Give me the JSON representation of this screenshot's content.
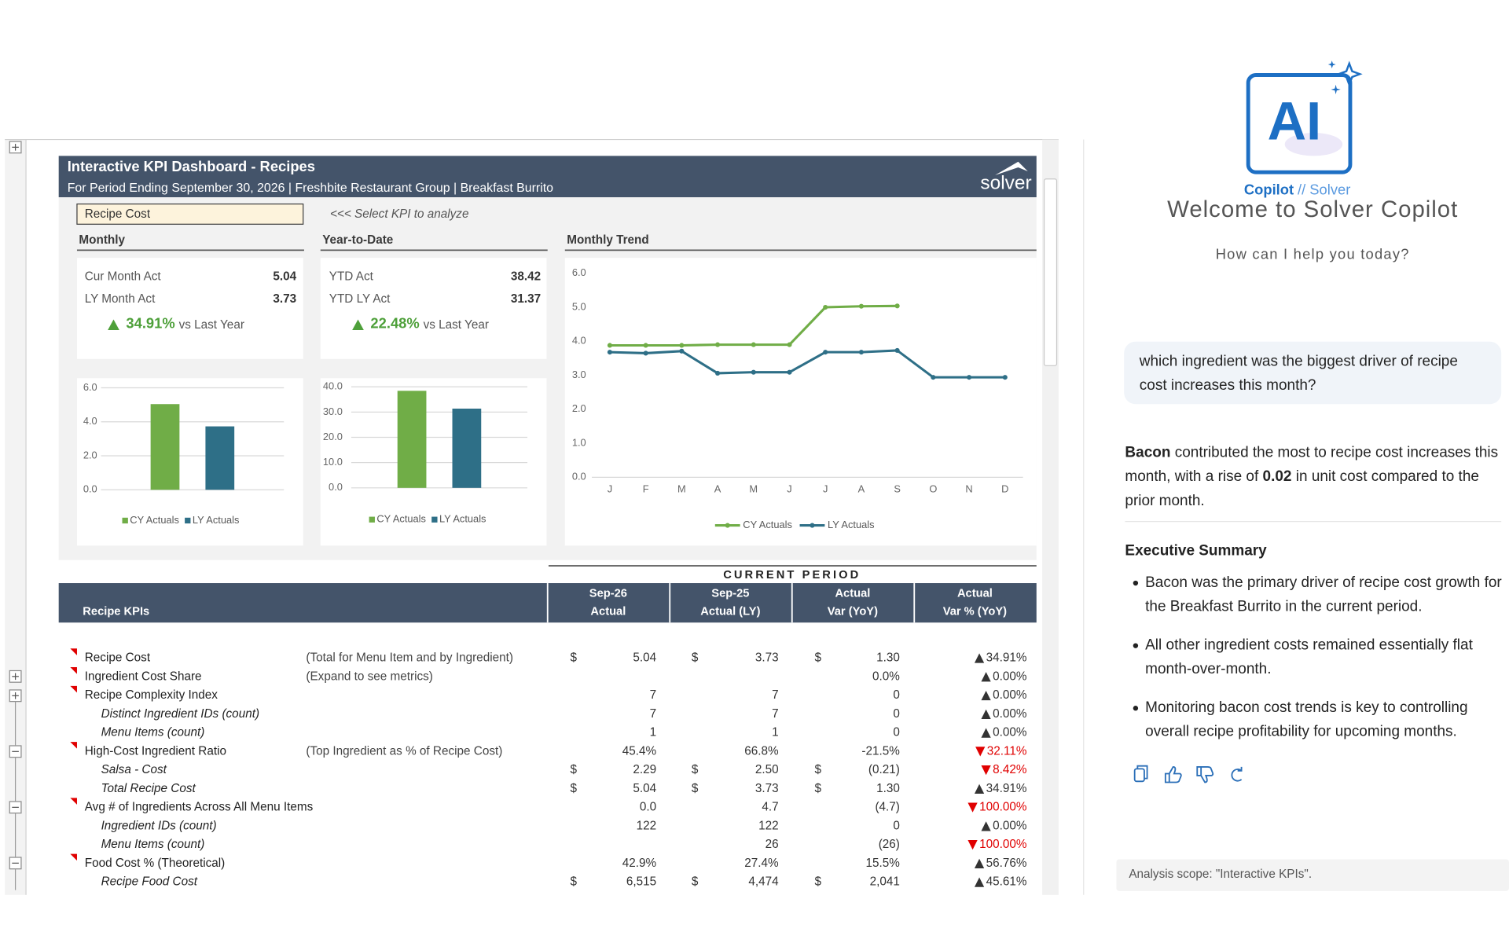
{
  "header": {
    "title": "Interactive KPI Dashboard - Recipes",
    "subtitle": "For Period Ending September 30, 2026 | Freshbite Restaurant Group | Breakfast Burrito",
    "logo": "solver"
  },
  "kpi_selector": {
    "value": "Recipe Cost",
    "hint": "<<< Select KPI to analyze"
  },
  "sections": {
    "monthly": "Monthly",
    "ytd": "Year-to-Date",
    "trend": "Monthly Trend"
  },
  "monthly": {
    "rows": [
      {
        "label": "Cur Month Act",
        "value": "5.04"
      },
      {
        "label": "LY Month Act",
        "value": "3.73"
      }
    ],
    "change": "34.91%",
    "change_note": "vs Last Year"
  },
  "ytd": {
    "rows": [
      {
        "label": "YTD Act",
        "value": "38.42"
      },
      {
        "label": "YTD LY  Act",
        "value": "31.37"
      }
    ],
    "change": "22.48%",
    "change_note": "vs Last Year"
  },
  "chart_data": [
    {
      "type": "bar",
      "categories": [
        null
      ],
      "series": [
        {
          "name": "CY Actuals",
          "color": "#70ad47",
          "values": [
            5.04
          ]
        },
        {
          "name": "LY Actuals",
          "color": "#2e6f87",
          "values": [
            3.73
          ]
        }
      ],
      "ylim": [
        0,
        6
      ],
      "yticks": [
        {
          "value": 0,
          "label": "0.0"
        },
        {
          "value": 2,
          "label": "2.0"
        },
        {
          "value": 4,
          "label": "4.0"
        },
        {
          "value": 6,
          "label": "6.0"
        }
      ],
      "grid": true,
      "legend": "bottom"
    },
    {
      "type": "bar",
      "categories": [
        null
      ],
      "series": [
        {
          "name": "CY Actuals",
          "color": "#70ad47",
          "values": [
            38.42
          ]
        },
        {
          "name": "LY Actuals",
          "color": "#2e6f87",
          "values": [
            31.37
          ]
        }
      ],
      "ylim": [
        0,
        40
      ],
      "yticks": [
        {
          "value": 0,
          "label": "0.0"
        },
        {
          "value": 10,
          "label": "10.0"
        },
        {
          "value": 20,
          "label": "20.0"
        },
        {
          "value": 30,
          "label": "30.0"
        },
        {
          "value": 40,
          "label": "40.0"
        }
      ],
      "grid": true,
      "legend": "bottom"
    },
    {
      "type": "line",
      "categories": [
        "J",
        "F",
        "M",
        "A",
        "M",
        "J",
        "J",
        "A",
        "S",
        "O",
        "N",
        "D"
      ],
      "series": [
        {
          "name": "CY Actuals",
          "color": "#70ad47",
          "values": [
            3.88,
            3.88,
            3.88,
            3.9,
            3.9,
            3.9,
            5.0,
            5.03,
            5.04,
            null,
            null,
            null
          ]
        },
        {
          "name": "LY Actuals",
          "color": "#2e6f87",
          "values": [
            3.68,
            3.65,
            3.71,
            3.06,
            3.09,
            3.09,
            3.68,
            3.68,
            3.73,
            2.94,
            2.94,
            2.94
          ]
        }
      ],
      "ylim": [
        0,
        6
      ],
      "yticks": [
        {
          "value": 0,
          "label": "0.0"
        },
        {
          "value": 1,
          "label": "1.0"
        },
        {
          "value": 2,
          "label": "2.0"
        },
        {
          "value": 3,
          "label": "3.0"
        },
        {
          "value": 4,
          "label": "4.0"
        },
        {
          "value": 5,
          "label": "5.0"
        },
        {
          "value": 6,
          "label": "6.0"
        }
      ],
      "grid": false,
      "legend": "bottom"
    }
  ],
  "table": {
    "banner": "CURRENT PERIOD",
    "first_header": "Recipe KPIs",
    "columns": [
      {
        "top": "Sep-26",
        "bottom": "Actual"
      },
      {
        "top": "Sep-25",
        "bottom": "Actual (LY)"
      },
      {
        "top": "Actual",
        "bottom": "Var (YoY)"
      },
      {
        "top": "Actual",
        "bottom": "Var % (YoY)"
      }
    ],
    "rows": [
      {
        "label": "Recipe Cost",
        "note": "(Total for Menu Item and by Ingredient)",
        "sub": false,
        "cy_cur": "$",
        "cy": "5.04",
        "ly_cur": "$",
        "ly": "3.73",
        "var_cur": "$",
        "var": "1.30",
        "pct": "34.91%",
        "dir": "up"
      },
      {
        "label": "Ingredient Cost Share",
        "note": "(Expand to see metrics)",
        "sub": false,
        "var": "0.0%",
        "pct": "0.00%",
        "dir": "up"
      },
      {
        "label": "Recipe Complexity Index",
        "sub": false,
        "cy": "7",
        "ly": "7",
        "var": "0",
        "pct": "0.00%",
        "dir": "up"
      },
      {
        "label": "Distinct Ingredient IDs (count)",
        "sub": true,
        "cy": "7",
        "ly": "7",
        "var": "0",
        "pct": "0.00%",
        "dir": "up"
      },
      {
        "label": "Menu Items (count)",
        "sub": true,
        "cy": "1",
        "ly": "1",
        "var": "0",
        "pct": "0.00%",
        "dir": "up"
      },
      {
        "label": "High-Cost Ingredient Ratio",
        "note": "(Top Ingredient as % of Recipe Cost)",
        "sub": false,
        "cy": "45.4%",
        "ly": "66.8%",
        "var": "-21.5%",
        "pct": "32.11%",
        "dir": "down"
      },
      {
        "label": "Salsa - Cost",
        "sub": true,
        "cy_cur": "$",
        "cy": "2.29",
        "ly_cur": "$",
        "ly": "2.50",
        "var_cur": "$",
        "var": "(0.21)",
        "pct": "8.42%",
        "dir": "down"
      },
      {
        "label": "Total Recipe Cost",
        "sub": true,
        "cy_cur": "$",
        "cy": "5.04",
        "ly_cur": "$",
        "ly": "3.73",
        "var_cur": "$",
        "var": "1.30",
        "pct": "34.91%",
        "dir": "up"
      },
      {
        "label": "Avg # of  Ingredients Across All Menu Items",
        "sub": false,
        "cy": "0.0",
        "ly": "4.7",
        "var": "(4.7)",
        "pct": "100.00%",
        "dir": "down"
      },
      {
        "label": "Ingredient IDs (count)",
        "sub": true,
        "cy": "122",
        "ly": "122",
        "var": "0",
        "pct": "0.00%",
        "dir": "up"
      },
      {
        "label": "Menu Items (count)",
        "sub": true,
        "ly": "26",
        "var": "(26)",
        "pct": "100.00%",
        "dir": "down"
      },
      {
        "label": "Food Cost % (Theoretical)",
        "sub": false,
        "cy": "42.9%",
        "ly": "27.4%",
        "var": "15.5%",
        "pct": "56.76%",
        "dir": "up"
      },
      {
        "label": "Recipe Food Cost",
        "sub": true,
        "cy_cur": "$",
        "cy": "6,515",
        "ly_cur": "$",
        "ly": "4,474",
        "var_cur": "$",
        "var": "2,041",
        "pct": "45.61%",
        "dir": "up"
      }
    ]
  },
  "copilot": {
    "logo": {
      "mark": "AI",
      "brand": "Copilot",
      "brand_suffix": "// Solver"
    },
    "welcome": "Welcome to Solver Copilot",
    "prompt": "How can I help you today?",
    "user_message": "which ingredient was the biggest driver of recipe cost increases this month?",
    "answer": [
      {
        "text": "Bacon",
        "bold": true
      },
      {
        "text": " contributed the most to recipe cost increases this month, with a rise of ",
        "bold": false
      },
      {
        "text": "0.02",
        "bold": true
      },
      {
        "text": " in unit cost compared to the prior month.",
        "bold": false
      }
    ],
    "summary_title": "Executive Summary",
    "bullets": [
      "Bacon was the primary driver of recipe cost growth for the Breakfast Burrito in the current period.",
      "All other ingredient costs remained essentially flat month-over-month.",
      "Monitoring bacon cost trends is key to controlling overall recipe profitability for upcoming months."
    ],
    "scope": "Analysis scope: \"Interactive KPIs\"."
  }
}
